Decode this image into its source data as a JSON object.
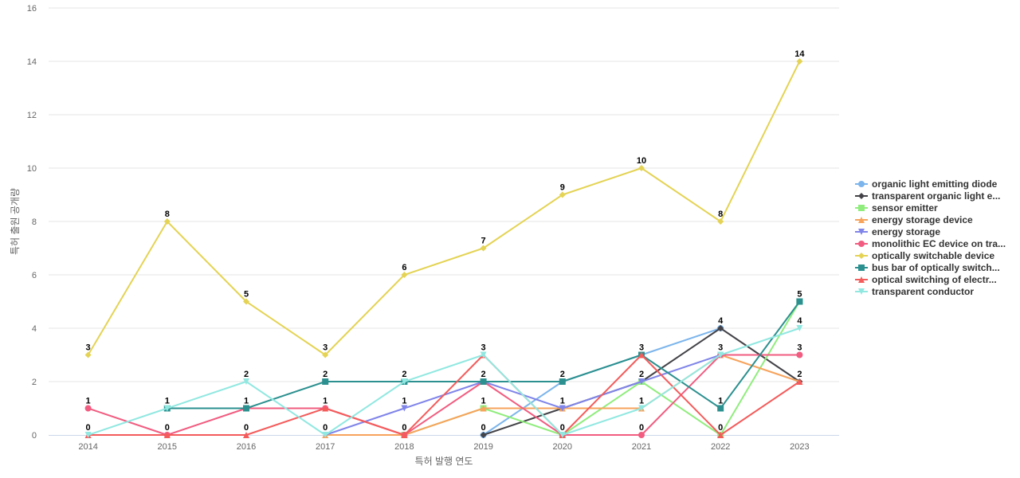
{
  "chart_data": {
    "type": "line",
    "title": "",
    "xlabel": "특허 발행 연도",
    "ylabel": "특허 출원 공개량",
    "ylim": [
      0,
      16
    ],
    "yticks": [
      0,
      2,
      4,
      6,
      8,
      10,
      12,
      14,
      16
    ],
    "categories": [
      "2014",
      "2015",
      "2016",
      "2017",
      "2018",
      "2019",
      "2020",
      "2021",
      "2022",
      "2023"
    ],
    "legend_position": "right",
    "series": [
      {
        "name": "organic light emitting diode",
        "color": "#7cb5ec",
        "marker": "circle",
        "values": [
          null,
          null,
          null,
          null,
          null,
          0,
          2,
          3,
          4,
          null
        ]
      },
      {
        "name": "transparent organic light e...",
        "color": "#434348",
        "marker": "diamond",
        "values": [
          null,
          null,
          null,
          null,
          null,
          0,
          1,
          2,
          4,
          2
        ]
      },
      {
        "name": "sensor emitter",
        "color": "#90ed7d",
        "marker": "square",
        "values": [
          null,
          null,
          null,
          null,
          0,
          1,
          0,
          2,
          0,
          5
        ]
      },
      {
        "name": "energy storage device",
        "color": "#f7a35c",
        "marker": "triangle",
        "values": [
          null,
          null,
          null,
          0,
          0,
          1,
          1,
          1,
          3,
          2
        ]
      },
      {
        "name": "energy storage",
        "color": "#8085e9",
        "marker": "triangle-down",
        "values": [
          null,
          null,
          null,
          0,
          1,
          2,
          1,
          2,
          3,
          null
        ]
      },
      {
        "name": "monolithic EC device on tra...",
        "color": "#f15c80",
        "marker": "circle",
        "values": [
          1,
          0,
          1,
          1,
          0,
          2,
          0,
          0,
          3,
          3
        ]
      },
      {
        "name": "optically switchable device",
        "color": "#e4d354",
        "marker": "diamond",
        "values": [
          3,
          8,
          5,
          3,
          6,
          7,
          9,
          10,
          8,
          14
        ]
      },
      {
        "name": "bus bar of optically switch...",
        "color": "#2b908f",
        "marker": "square",
        "values": [
          null,
          1,
          1,
          2,
          2,
          2,
          2,
          3,
          1,
          5
        ]
      },
      {
        "name": "optical switching of electr...",
        "color": "#f45b5b",
        "marker": "triangle",
        "values": [
          0,
          0,
          0,
          1,
          0,
          3,
          0,
          3,
          0,
          2
        ]
      },
      {
        "name": "transparent conductor",
        "color": "#91e8e1",
        "marker": "triangle-down",
        "values": [
          0,
          1,
          2,
          0,
          2,
          3,
          0,
          1,
          3,
          4
        ]
      }
    ],
    "data_labels": [
      {
        "x": "2014",
        "y": 3,
        "text": "3"
      },
      {
        "x": "2014",
        "y": 1,
        "text": "1"
      },
      {
        "x": "2014",
        "y": 0,
        "text": "0"
      },
      {
        "x": "2015",
        "y": 8,
        "text": "8"
      },
      {
        "x": "2015",
        "y": 1,
        "text": "1"
      },
      {
        "x": "2015",
        "y": 0,
        "text": "0"
      },
      {
        "x": "2016",
        "y": 5,
        "text": "5"
      },
      {
        "x": "2016",
        "y": 2,
        "text": "2"
      },
      {
        "x": "2016",
        "y": 1,
        "text": "1"
      },
      {
        "x": "2016",
        "y": 0,
        "text": "0"
      },
      {
        "x": "2017",
        "y": 3,
        "text": "3"
      },
      {
        "x": "2017",
        "y": 2,
        "text": "2"
      },
      {
        "x": "2017",
        "y": 1,
        "text": "1"
      },
      {
        "x": "2017",
        "y": 0,
        "text": "0"
      },
      {
        "x": "2018",
        "y": 6,
        "text": "6"
      },
      {
        "x": "2018",
        "y": 2,
        "text": "2"
      },
      {
        "x": "2018",
        "y": 1,
        "text": "1"
      },
      {
        "x": "2018",
        "y": 0,
        "text": "0"
      },
      {
        "x": "2019",
        "y": 7,
        "text": "7"
      },
      {
        "x": "2019",
        "y": 3,
        "text": "3"
      },
      {
        "x": "2019",
        "y": 2,
        "text": "2"
      },
      {
        "x": "2019",
        "y": 1,
        "text": "1"
      },
      {
        "x": "2019",
        "y": 0,
        "text": "0"
      },
      {
        "x": "2020",
        "y": 9,
        "text": "9"
      },
      {
        "x": "2020",
        "y": 2,
        "text": "2"
      },
      {
        "x": "2020",
        "y": 1,
        "text": "1"
      },
      {
        "x": "2020",
        "y": 0,
        "text": "0"
      },
      {
        "x": "2021",
        "y": 10,
        "text": "10"
      },
      {
        "x": "2021",
        "y": 3,
        "text": "3"
      },
      {
        "x": "2021",
        "y": 2,
        "text": "2"
      },
      {
        "x": "2021",
        "y": 1,
        "text": "1"
      },
      {
        "x": "2021",
        "y": 0,
        "text": "0"
      },
      {
        "x": "2022",
        "y": 8,
        "text": "8"
      },
      {
        "x": "2022",
        "y": 4,
        "text": "4"
      },
      {
        "x": "2022",
        "y": 3,
        "text": "3"
      },
      {
        "x": "2022",
        "y": 1,
        "text": "1"
      },
      {
        "x": "2022",
        "y": 0,
        "text": "0"
      },
      {
        "x": "2023",
        "y": 14,
        "text": "14"
      },
      {
        "x": "2023",
        "y": 5,
        "text": "5"
      },
      {
        "x": "2023",
        "y": 4,
        "text": "4"
      },
      {
        "x": "2023",
        "y": 3,
        "text": "3"
      },
      {
        "x": "2023",
        "y": 2,
        "text": "2"
      }
    ]
  }
}
